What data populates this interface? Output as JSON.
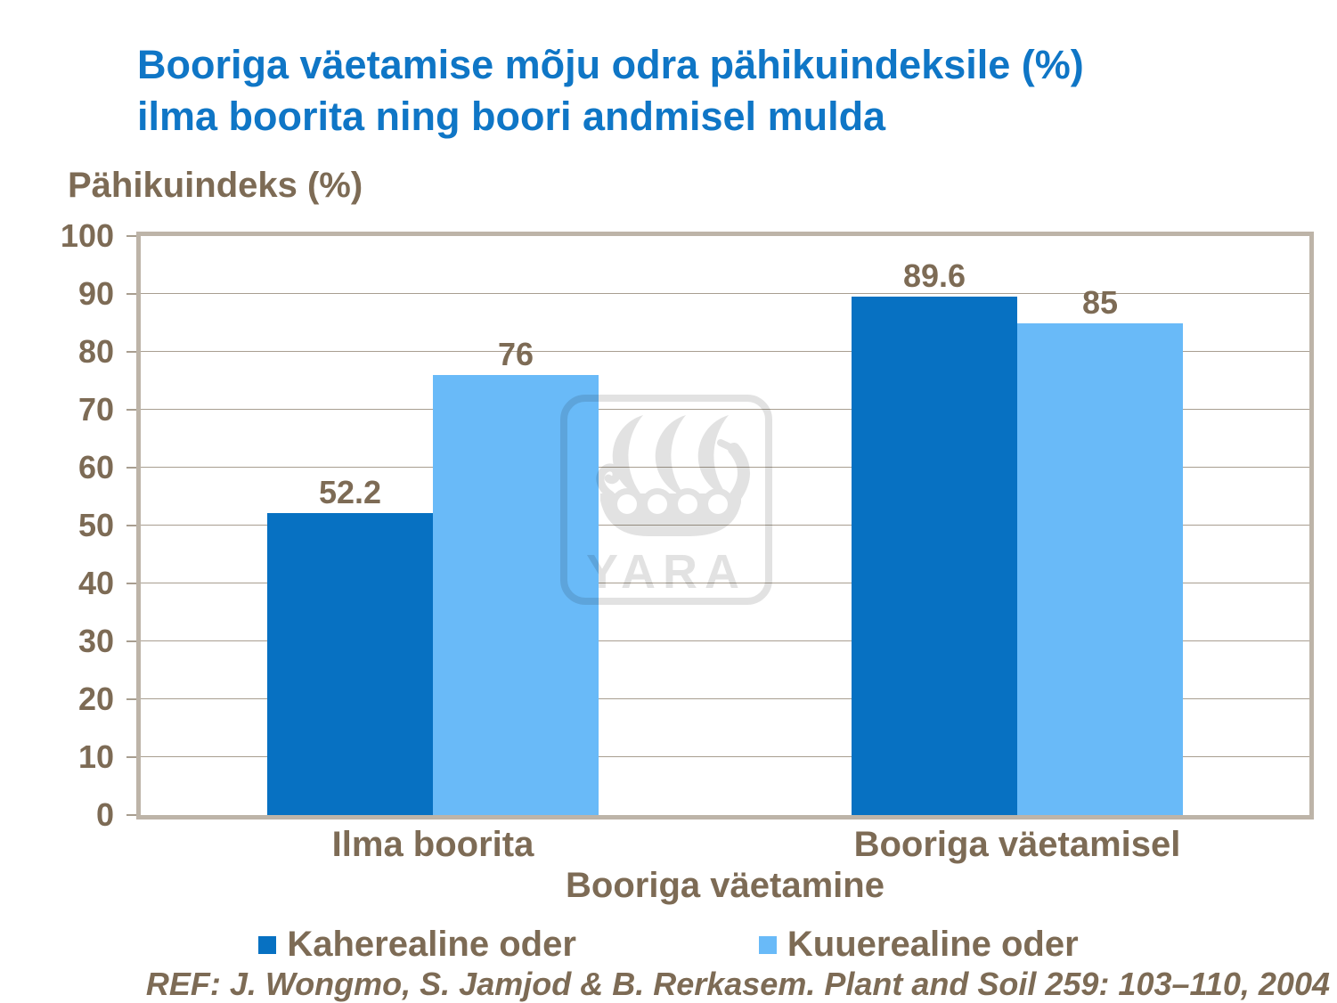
{
  "slide": {
    "title_line1": "Booriga väetamise mõju odra pähikuindeksile (%)",
    "title_line2": "ilma boorita ning boori andmisel mulda",
    "reference": "REF: J. Wongmo, S. Jamjod & B. Rerkasem. Plant and Soil 259: 103–110, 2004"
  },
  "chart_data": {
    "type": "bar",
    "title": "Booriga väetamise mõju odra pähikuindeksile (%) ilma boorita ning boori andmisel mulda",
    "categories": [
      "Ilma boorita",
      "Booriga väetamisel"
    ],
    "series": [
      {
        "name": "Kaherealine oder",
        "color": "#0771C2",
        "values": [
          52.2,
          89.6
        ]
      },
      {
        "name": "Kuuerealine oder",
        "color": "#69BAF8",
        "values": [
          76,
          85
        ]
      }
    ],
    "ylabel": "Pähikuindeks (%)",
    "xlabel": "Booriga väetamine",
    "ylim": [
      0,
      100
    ],
    "ytick_step": 10,
    "grid": true,
    "legend_position": "bottom",
    "data_labels": [
      [
        "52.2",
        "89.6"
      ],
      [
        "76",
        "85"
      ]
    ]
  },
  "watermark": {
    "name": "yara-logo",
    "text": "YARA"
  },
  "colors": {
    "title": "#0F76C6",
    "text_brown": "#7D6B55",
    "gridline": "#A89E90",
    "plot_border": "#BDB4A8",
    "series_dark_blue": "#0771C2",
    "series_light_blue": "#69BAF8",
    "background": "#FFFFFF"
  }
}
